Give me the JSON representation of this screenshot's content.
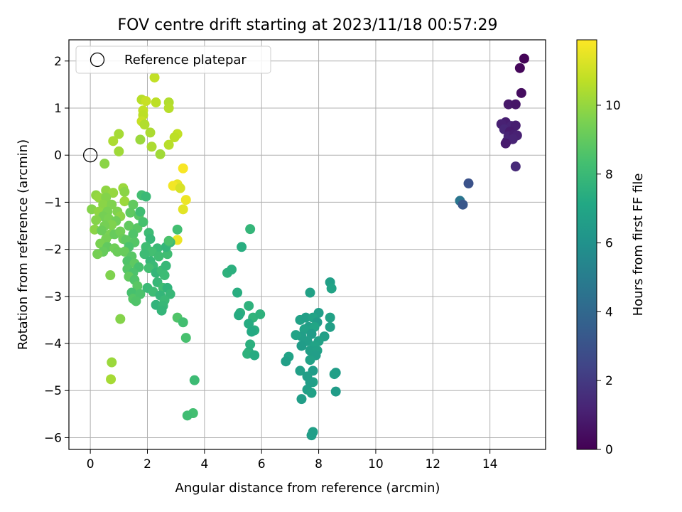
{
  "chart_data": {
    "type": "scatter",
    "title": "FOV centre drift starting at 2023/11/18 00:57:29",
    "xlabel": "Angular distance from reference (arcmin)",
    "ylabel": "Rotation from reference (arcmin)",
    "xlim": [
      -0.75,
      15.95
    ],
    "ylim": [
      -6.25,
      2.45
    ],
    "xticks": [
      0,
      2,
      4,
      6,
      8,
      10,
      12,
      14
    ],
    "yticks": [
      2,
      1,
      0,
      -1,
      -2,
      -3,
      -4,
      -5,
      -6
    ],
    "grid": true,
    "legend": {
      "position": "top-left",
      "label": "Reference platepar"
    },
    "reference_point": {
      "x": 0,
      "y": 0
    },
    "colorbar": {
      "label": "Hours from first FF file",
      "range": [
        0,
        11.9
      ],
      "ticks": [
        0,
        2,
        4,
        6,
        8,
        10
      ],
      "colormap": "viridis"
    },
    "points": [
      [
        15.2,
        2.05,
        0.1
      ],
      [
        15.05,
        1.85,
        0.2
      ],
      [
        15.1,
        1.32,
        0.4
      ],
      [
        14.65,
        1.08,
        0.8
      ],
      [
        14.9,
        1.08,
        0.7
      ],
      [
        14.55,
        0.7,
        1.0
      ],
      [
        14.4,
        0.66,
        1.1
      ],
      [
        14.75,
        0.62,
        1.2
      ],
      [
        14.9,
        0.63,
        1.0
      ],
      [
        14.5,
        0.55,
        1.3
      ],
      [
        14.7,
        0.5,
        0.9
      ],
      [
        14.65,
        0.4,
        1.2
      ],
      [
        14.85,
        0.44,
        1.0
      ],
      [
        14.95,
        0.42,
        1.1
      ],
      [
        14.6,
        0.3,
        1.3
      ],
      [
        14.8,
        0.34,
        1.2
      ],
      [
        14.55,
        0.25,
        0.9
      ],
      [
        14.9,
        -0.24,
        1.4
      ],
      [
        13.25,
        -0.6,
        3.0
      ],
      [
        12.95,
        -0.97,
        4.6
      ],
      [
        13.05,
        -1.05,
        3.2
      ],
      [
        5.6,
        -1.57,
        7.8
      ],
      [
        5.3,
        -1.95,
        7.4
      ],
      [
        4.8,
        -2.5,
        7.6
      ],
      [
        4.95,
        -2.43,
        7.5
      ],
      [
        5.15,
        -2.92,
        7.4
      ],
      [
        5.55,
        -3.2,
        7.6
      ],
      [
        5.25,
        -3.35,
        7.5
      ],
      [
        5.2,
        -3.4,
        7.3
      ],
      [
        5.7,
        -3.45,
        7.7
      ],
      [
        5.95,
        -3.38,
        7.6
      ],
      [
        5.55,
        -3.58,
        7.3
      ],
      [
        5.75,
        -3.72,
        7.4
      ],
      [
        5.65,
        -3.75,
        7.2
      ],
      [
        5.6,
        -4.02,
        7.5
      ],
      [
        5.55,
        -4.18,
        7.4
      ],
      [
        5.5,
        -4.22,
        7.6
      ],
      [
        5.75,
        -4.25,
        7.3
      ],
      [
        7.7,
        -2.92,
        6.8
      ],
      [
        8.4,
        -2.7,
        6.7
      ],
      [
        8.45,
        -2.83,
        6.9
      ],
      [
        8.0,
        -3.35,
        6.6
      ],
      [
        7.35,
        -3.5,
        6.8
      ],
      [
        7.55,
        -3.45,
        6.7
      ],
      [
        7.8,
        -3.45,
        6.9
      ],
      [
        7.95,
        -3.55,
        6.5
      ],
      [
        8.4,
        -3.45,
        6.8
      ],
      [
        7.65,
        -3.65,
        6.6
      ],
      [
        7.85,
        -3.65,
        7.0
      ],
      [
        8.4,
        -3.65,
        6.7
      ],
      [
        7.5,
        -3.7,
        6.8
      ],
      [
        7.4,
        -3.85,
        6.6
      ],
      [
        7.2,
        -3.82,
        6.9
      ],
      [
        7.75,
        -3.8,
        6.5
      ],
      [
        8.2,
        -3.85,
        6.7
      ],
      [
        8.0,
        -3.95,
        6.8
      ],
      [
        7.6,
        -3.95,
        6.6
      ],
      [
        7.85,
        -4.05,
        6.9
      ],
      [
        7.4,
        -4.05,
        6.5
      ],
      [
        7.7,
        -4.15,
        6.7
      ],
      [
        7.95,
        -4.15,
        6.8
      ],
      [
        7.9,
        -4.25,
        6.6
      ],
      [
        6.95,
        -4.28,
        6.9
      ],
      [
        6.85,
        -4.38,
        6.7
      ],
      [
        7.7,
        -4.35,
        6.8
      ],
      [
        7.8,
        -4.58,
        6.5
      ],
      [
        7.35,
        -4.58,
        6.7
      ],
      [
        7.6,
        -4.7,
        6.6
      ],
      [
        7.8,
        -4.82,
        6.8
      ],
      [
        8.6,
        -4.62,
        6.5
      ],
      [
        8.55,
        -4.65,
        6.7
      ],
      [
        7.7,
        -4.82,
        6.6
      ],
      [
        7.6,
        -4.98,
        6.7
      ],
      [
        7.75,
        -5.05,
        6.8
      ],
      [
        7.4,
        -5.18,
        6.6
      ],
      [
        8.6,
        -5.02,
        6.5
      ],
      [
        7.8,
        -5.88,
        6.7
      ],
      [
        7.75,
        -5.95,
        6.6
      ],
      [
        1.0,
        0.45,
        10.3
      ],
      [
        1.0,
        0.08,
        10.2
      ],
      [
        0.8,
        0.3,
        10.4
      ],
      [
        1.75,
        0.33,
        10.1
      ],
      [
        2.1,
        0.48,
        10.4
      ],
      [
        2.25,
        1.65,
        10.8
      ],
      [
        1.8,
        1.18,
        10.6
      ],
      [
        1.95,
        1.15,
        10.9
      ],
      [
        2.3,
        1.12,
        10.7
      ],
      [
        2.75,
        1.12,
        10.5
      ],
      [
        1.85,
        0.95,
        10.8
      ],
      [
        1.85,
        0.85,
        10.7
      ],
      [
        2.75,
        1.0,
        10.6
      ],
      [
        1.8,
        0.72,
        10.9
      ],
      [
        1.9,
        0.65,
        10.5
      ],
      [
        2.15,
        0.18,
        10.4
      ],
      [
        2.75,
        0.22,
        10.6
      ],
      [
        2.45,
        0.02,
        10.2
      ],
      [
        3.05,
        0.45,
        10.8
      ],
      [
        2.95,
        0.38,
        10.7
      ],
      [
        0.5,
        -0.18,
        9.8
      ],
      [
        3.25,
        -0.28,
        11.8
      ],
      [
        3.05,
        -0.62,
        11.5
      ],
      [
        2.9,
        -0.65,
        11.7
      ],
      [
        3.15,
        -0.7,
        11.2
      ],
      [
        3.35,
        -0.95,
        11.6
      ],
      [
        3.25,
        -1.15,
        11.4
      ],
      [
        3.05,
        -1.8,
        11.6
      ],
      [
        0.55,
        -0.75,
        9.9
      ],
      [
        0.8,
        -0.8,
        10.0
      ],
      [
        1.15,
        -0.7,
        10.1
      ],
      [
        1.2,
        -0.78,
        9.8
      ],
      [
        0.2,
        -0.85,
        9.9
      ],
      [
        0.3,
        -0.9,
        10.0
      ],
      [
        0.55,
        -0.9,
        9.7
      ],
      [
        1.2,
        -0.98,
        10.1
      ],
      [
        0.45,
        -1.05,
        9.8
      ],
      [
        0.75,
        -1.05,
        9.6
      ],
      [
        0.05,
        -1.15,
        9.7
      ],
      [
        0.3,
        -1.2,
        9.9
      ],
      [
        0.6,
        -1.2,
        9.5
      ],
      [
        0.95,
        -1.2,
        9.6
      ],
      [
        1.05,
        -1.3,
        9.8
      ],
      [
        0.45,
        -1.3,
        9.4
      ],
      [
        0.2,
        -1.38,
        9.7
      ],
      [
        0.65,
        -1.35,
        9.5
      ],
      [
        0.9,
        -1.4,
        9.3
      ],
      [
        0.75,
        -1.48,
        9.6
      ],
      [
        0.5,
        -1.5,
        9.4
      ],
      [
        0.15,
        -1.58,
        9.8
      ],
      [
        0.4,
        -1.6,
        9.2
      ],
      [
        0.7,
        -1.68,
        9.5
      ],
      [
        0.85,
        -1.68,
        9.1
      ],
      [
        1.05,
        -1.62,
        9.3
      ],
      [
        0.55,
        -1.78,
        9.4
      ],
      [
        1.15,
        -1.78,
        9.2
      ],
      [
        0.35,
        -1.88,
        9.5
      ],
      [
        0.6,
        -1.95,
        9.0
      ],
      [
        0.85,
        -1.98,
        9.3
      ],
      [
        0.45,
        -2.05,
        9.1
      ],
      [
        0.25,
        -2.1,
        9.4
      ],
      [
        0.95,
        -2.05,
        9.2
      ],
      [
        0.7,
        -2.55,
        9.6
      ],
      [
        1.05,
        -3.48,
        9.7
      ],
      [
        0.75,
        -4.4,
        10.1
      ],
      [
        0.72,
        -4.76,
        10.3
      ],
      [
        1.5,
        -1.05,
        9.0
      ],
      [
        1.4,
        -1.22,
        8.9
      ],
      [
        1.7,
        -1.28,
        8.7
      ],
      [
        1.35,
        -1.5,
        9.0
      ],
      [
        1.65,
        -1.55,
        8.8
      ],
      [
        1.5,
        -1.68,
        8.6
      ],
      [
        1.25,
        -1.8,
        8.9
      ],
      [
        1.55,
        -1.85,
        8.7
      ],
      [
        1.35,
        -1.95,
        8.5
      ],
      [
        1.2,
        -2.05,
        9.1
      ],
      [
        1.45,
        -2.15,
        8.8
      ],
      [
        1.3,
        -2.25,
        8.6
      ],
      [
        1.55,
        -2.3,
        8.9
      ],
      [
        1.7,
        -2.38,
        8.4
      ],
      [
        1.3,
        -2.42,
        8.7
      ],
      [
        1.5,
        -2.5,
        8.5
      ],
      [
        1.35,
        -2.58,
        9.0
      ],
      [
        1.55,
        -2.65,
        8.6
      ],
      [
        1.65,
        -2.78,
        8.8
      ],
      [
        1.45,
        -2.92,
        8.4
      ],
      [
        1.5,
        -3.05,
        8.7
      ],
      [
        1.75,
        -2.95,
        8.5
      ],
      [
        1.6,
        -3.1,
        8.6
      ],
      [
        1.8,
        -0.85,
        8.3
      ],
      [
        1.95,
        -0.88,
        8.0
      ],
      [
        1.75,
        -1.2,
        8.2
      ],
      [
        1.85,
        -1.42,
        8.4
      ],
      [
        2.05,
        -1.65,
        8.1
      ],
      [
        2.1,
        -1.78,
        7.9
      ],
      [
        1.95,
        -1.95,
        8.2
      ],
      [
        2.35,
        -1.98,
        8.0
      ],
      [
        2.15,
        -2.05,
        8.3
      ],
      [
        1.9,
        -2.1,
        8.1
      ],
      [
        2.1,
        -2.25,
        7.9
      ],
      [
        2.4,
        -2.15,
        8.2
      ],
      [
        2.2,
        -2.35,
        8.0
      ],
      [
        2.05,
        -2.4,
        8.3
      ],
      [
        2.3,
        -2.5,
        7.8
      ],
      [
        2.5,
        -2.45,
        8.1
      ],
      [
        2.65,
        -2.35,
        7.9
      ],
      [
        2.7,
        -2.1,
        8.2
      ],
      [
        2.65,
        -1.95,
        7.8
      ],
      [
        2.8,
        -1.85,
        8.0
      ],
      [
        2.6,
        -2.55,
        8.1
      ],
      [
        2.35,
        -2.7,
        7.9
      ],
      [
        2.55,
        -2.82,
        8.2
      ],
      [
        2.7,
        -2.82,
        7.7
      ],
      [
        2.0,
        -2.82,
        8.0
      ],
      [
        2.2,
        -2.9,
        8.1
      ],
      [
        2.45,
        -2.98,
        7.8
      ],
      [
        2.8,
        -2.95,
        7.9
      ],
      [
        2.6,
        -3.08,
        8.0
      ],
      [
        2.3,
        -3.18,
        7.7
      ],
      [
        2.55,
        -3.2,
        7.9
      ],
      [
        2.5,
        -3.3,
        7.8
      ],
      [
        3.05,
        -1.58,
        8.3
      ],
      [
        2.75,
        -1.82,
        8.5
      ],
      [
        3.05,
        -3.45,
        8.6
      ],
      [
        3.25,
        -3.55,
        8.3
      ],
      [
        3.35,
        -3.88,
        8.4
      ],
      [
        3.65,
        -4.78,
        8.1
      ],
      [
        3.6,
        -5.48,
        8.3
      ],
      [
        3.4,
        -5.53,
        8.2
      ]
    ]
  }
}
